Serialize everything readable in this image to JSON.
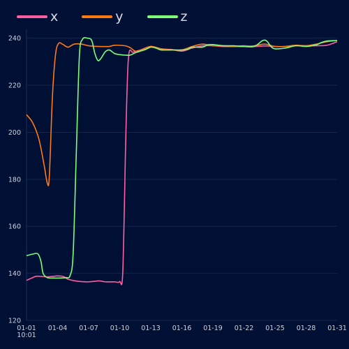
{
  "chart_data": {
    "type": "line",
    "x_tick_labels": [
      "01-01\n10:01",
      "01-04",
      "01-07",
      "01-10",
      "01-13",
      "01-16",
      "01-19",
      "01-22",
      "01-25",
      "01-28",
      "01-31"
    ],
    "y_tick_labels": [
      "120",
      "140",
      "160",
      "180",
      "200",
      "220",
      "240"
    ],
    "ylim": [
      120,
      242
    ],
    "xlim_days": [
      0,
      30
    ],
    "grid": {
      "x": false,
      "y": true
    },
    "legend_position": "top-left",
    "series": [
      {
        "name": "x",
        "color": "#ff5fa2",
        "points": [
          [
            0,
            137
          ],
          [
            0.5,
            138
          ],
          [
            1.0,
            138.8
          ],
          [
            2.0,
            138.5
          ],
          [
            3.0,
            138.9
          ],
          [
            3.6,
            138.6
          ],
          [
            4.0,
            137.5
          ],
          [
            5.0,
            136.6
          ],
          [
            6.0,
            136.4
          ],
          [
            7.0,
            136.8
          ],
          [
            7.6,
            136.4
          ],
          [
            8.5,
            136.4
          ],
          [
            9.0,
            136.5
          ],
          [
            9.3,
            141
          ],
          [
            9.6,
            200
          ],
          [
            9.85,
            232
          ],
          [
            10.3,
            234
          ],
          [
            11.0,
            235
          ],
          [
            12.0,
            236.5
          ],
          [
            13.0,
            235.5
          ],
          [
            14.0,
            235.2
          ],
          [
            15.0,
            234.5
          ],
          [
            16.0,
            235.8
          ],
          [
            17.0,
            236.8
          ],
          [
            18.0,
            236.8
          ],
          [
            19.0,
            236.5
          ],
          [
            20.0,
            236.5
          ],
          [
            21.0,
            236.8
          ],
          [
            22.0,
            236.5
          ],
          [
            23.0,
            236.7
          ],
          [
            24.0,
            236.5
          ],
          [
            25.0,
            236.5
          ],
          [
            26.0,
            236.8
          ],
          [
            27.0,
            236.8
          ],
          [
            28.0,
            236.8
          ],
          [
            29.0,
            237
          ],
          [
            30.0,
            238.5
          ]
        ]
      },
      {
        "name": "y",
        "color": "#ff7a14",
        "points": [
          [
            0,
            207.5
          ],
          [
            0.6,
            204
          ],
          [
            1.2,
            197
          ],
          [
            1.7,
            186
          ],
          [
            2.0,
            178.5
          ],
          [
            2.2,
            181
          ],
          [
            2.5,
            215
          ],
          [
            2.8,
            233
          ],
          [
            3.1,
            237.8
          ],
          [
            3.5,
            237.4
          ],
          [
            4.0,
            236.2
          ],
          [
            4.6,
            237.5
          ],
          [
            5.3,
            237.5
          ],
          [
            6.0,
            236.8
          ],
          [
            7.0,
            236.5
          ],
          [
            8.0,
            236.5
          ],
          [
            8.5,
            237
          ],
          [
            9.5,
            236.8
          ],
          [
            10.0,
            236
          ],
          [
            10.5,
            234.5
          ],
          [
            11.0,
            234.8
          ],
          [
            12.0,
            236.5
          ],
          [
            13.0,
            235.5
          ],
          [
            14.0,
            235
          ],
          [
            15.0,
            235
          ],
          [
            16.0,
            236.5
          ],
          [
            17.0,
            237.5
          ],
          [
            18.0,
            236.8
          ],
          [
            19.0,
            236.8
          ],
          [
            20.0,
            236.5
          ],
          [
            21.0,
            236.5
          ],
          [
            22.0,
            236.8
          ],
          [
            23.0,
            237.5
          ],
          [
            24.0,
            236.5
          ],
          [
            25.0,
            236.5
          ],
          [
            26.0,
            237
          ],
          [
            27.0,
            236.8
          ],
          [
            28.0,
            237.5
          ],
          [
            29.0,
            238.5
          ],
          [
            30.0,
            239
          ]
        ]
      },
      {
        "name": "z",
        "color": "#7dff7a",
        "points": [
          [
            0,
            147.5
          ],
          [
            0.6,
            148.2
          ],
          [
            1.1,
            148.3
          ],
          [
            1.4,
            145
          ],
          [
            1.6,
            140
          ],
          [
            2.0,
            138.2
          ],
          [
            2.6,
            138
          ],
          [
            3.2,
            138
          ],
          [
            3.8,
            138.2
          ],
          [
            4.2,
            139
          ],
          [
            4.5,
            148
          ],
          [
            4.8,
            190
          ],
          [
            5.1,
            232
          ],
          [
            5.4,
            239.5
          ],
          [
            5.9,
            240
          ],
          [
            6.3,
            239
          ],
          [
            6.6,
            233.5
          ],
          [
            6.9,
            230.5
          ],
          [
            7.2,
            231.5
          ],
          [
            7.6,
            234.2
          ],
          [
            8.0,
            235
          ],
          [
            8.5,
            233.5
          ],
          [
            9.0,
            233
          ],
          [
            9.5,
            232.8
          ],
          [
            10.0,
            232.8
          ],
          [
            10.5,
            233.8
          ],
          [
            11.0,
            234.5
          ],
          [
            11.5,
            235.2
          ],
          [
            12.0,
            236.2
          ],
          [
            12.5,
            235.8
          ],
          [
            13.0,
            235
          ],
          [
            14.0,
            235
          ],
          [
            15.0,
            235
          ],
          [
            15.5,
            235.2
          ],
          [
            16.0,
            236.2
          ],
          [
            17.0,
            236.2
          ],
          [
            17.5,
            237.2
          ],
          [
            18.0,
            237.3
          ],
          [
            19.0,
            236.8
          ],
          [
            20.0,
            236.8
          ],
          [
            21.0,
            236.5
          ],
          [
            22.0,
            236.5
          ],
          [
            22.8,
            239
          ],
          [
            23.2,
            238.8
          ],
          [
            23.6,
            236.5
          ],
          [
            24.0,
            235.5
          ],
          [
            25.0,
            235.8
          ],
          [
            26.0,
            236.8
          ],
          [
            27.0,
            236.5
          ],
          [
            28.0,
            237.2
          ],
          [
            28.5,
            238.2
          ],
          [
            29.0,
            238.8
          ],
          [
            30.0,
            239
          ]
        ]
      }
    ]
  }
}
